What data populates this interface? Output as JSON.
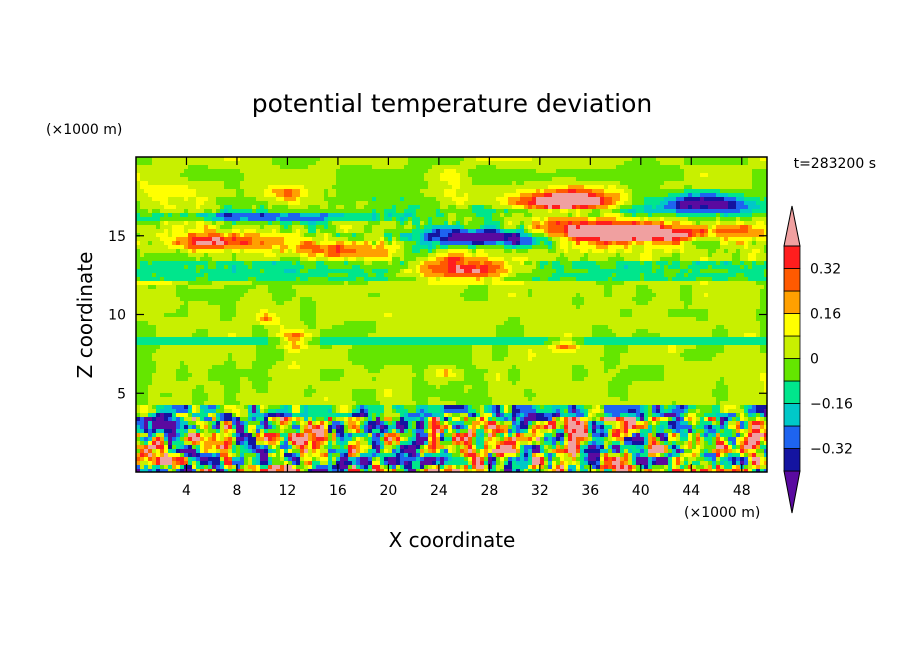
{
  "chart_data": {
    "type": "heatmap",
    "title": "potential temperature deviation",
    "xlabel": "X coordinate",
    "ylabel": "Z coordinate",
    "x_unit": "(×1000 m)",
    "y_unit": "(×1000 m)",
    "time_label": "t=283200 s",
    "xlim": [
      0,
      50
    ],
    "ylim": [
      0,
      20
    ],
    "x_ticks": [
      4,
      8,
      12,
      16,
      20,
      24,
      28,
      32,
      36,
      40,
      44,
      48
    ],
    "x_tick_labels": [
      "4",
      "8",
      "12",
      "16",
      "20",
      "24",
      "28",
      "32",
      "36",
      "40",
      "44",
      "48"
    ],
    "y_ticks": [
      5,
      10,
      15
    ],
    "y_tick_labels": [
      "5",
      "10",
      "15"
    ],
    "colorbar": {
      "levels": [
        -0.4,
        -0.32,
        -0.24,
        -0.16,
        -0.08,
        0,
        0.08,
        0.16,
        0.24,
        0.32,
        0.4
      ],
      "tick_values": [
        0.32,
        0.16,
        0,
        -0.16,
        -0.32
      ],
      "tick_labels": [
        "0.32",
        "0.16",
        "0",
        "−0.16",
        "−0.32"
      ],
      "colors": [
        "#5a0aa0",
        "#1414a0",
        "#1e64f0",
        "#00c8c8",
        "#00e68c",
        "#64e600",
        "#c8f000",
        "#ffff00",
        "#ffa000",
        "#ff5a00",
        "#ff1e1e",
        "#f0a0a0"
      ],
      "extend": "both"
    }
  }
}
